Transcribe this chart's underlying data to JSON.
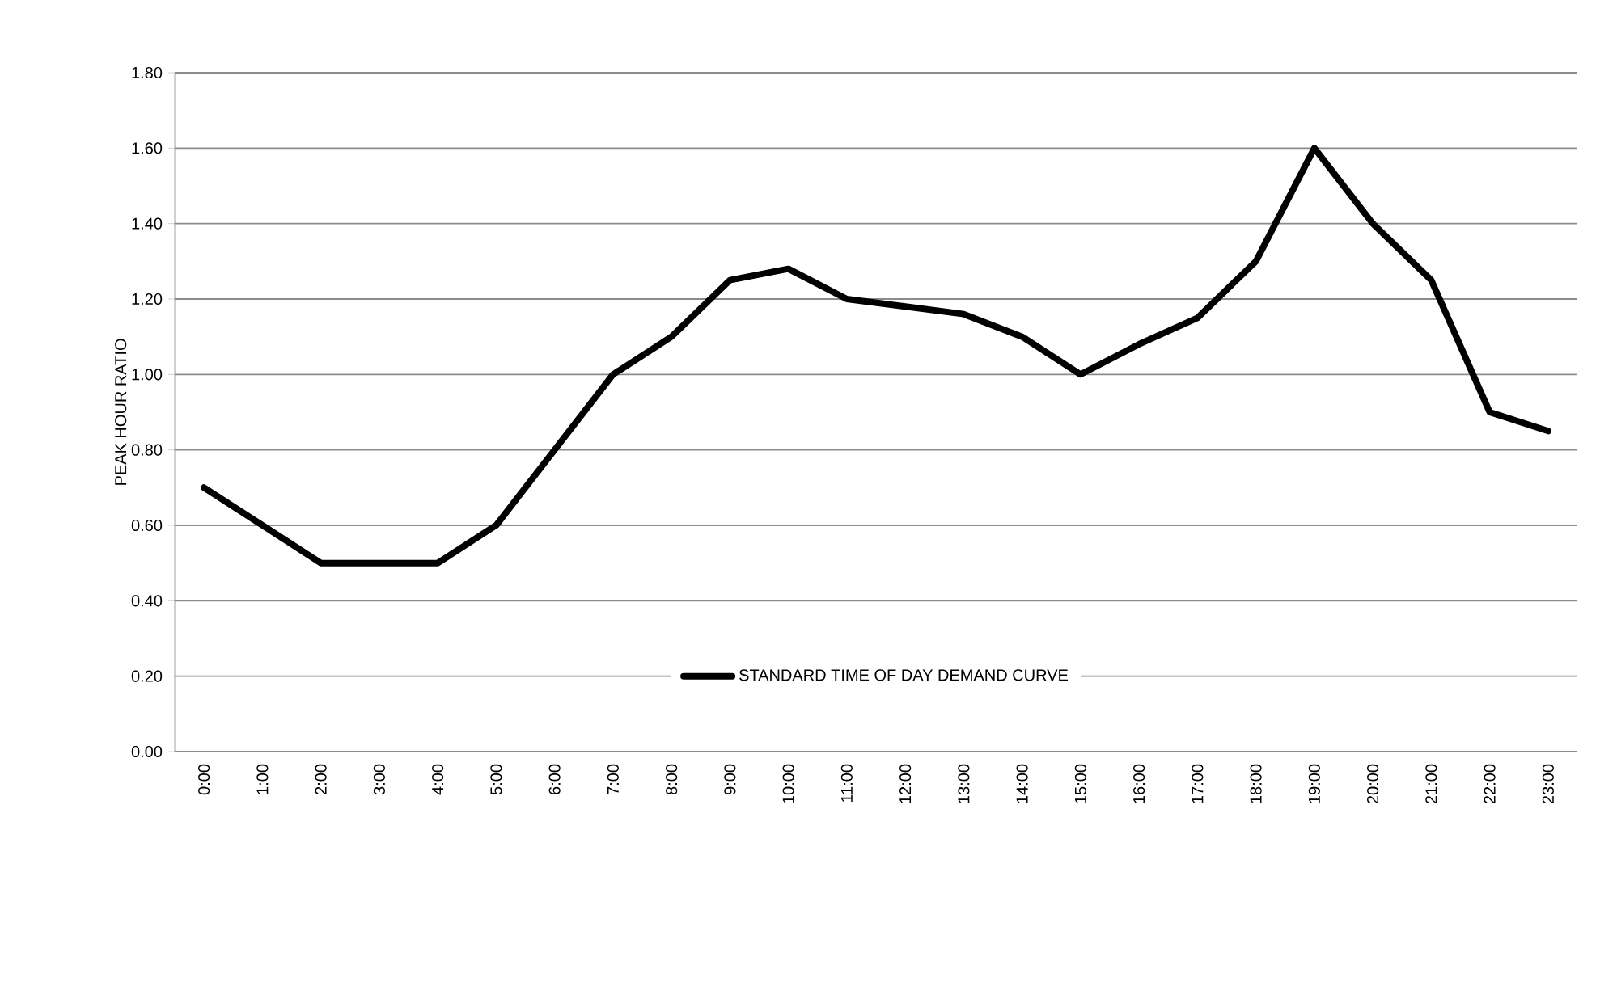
{
  "chart_data": {
    "type": "line",
    "ylabel": "PEAK HOUR RATIO",
    "categories": [
      "0:00",
      "1:00",
      "2:00",
      "3:00",
      "4:00",
      "5:00",
      "6:00",
      "7:00",
      "8:00",
      "9:00",
      "10:00",
      "11:00",
      "12:00",
      "13:00",
      "14:00",
      "15:00",
      "16:00",
      "17:00",
      "18:00",
      "19:00",
      "20:00",
      "21:00",
      "22:00",
      "23:00"
    ],
    "series": [
      {
        "name": "STANDARD TIME OF DAY DEMAND CURVE",
        "color": "#000000",
        "values": [
          0.7,
          0.6,
          0.5,
          0.5,
          0.5,
          0.6,
          0.8,
          1.0,
          1.1,
          1.25,
          1.28,
          1.2,
          1.18,
          1.16,
          1.1,
          1.0,
          1.08,
          1.15,
          1.3,
          1.6,
          1.4,
          1.25,
          0.9,
          0.85
        ]
      }
    ],
    "ylim": [
      0,
      1.8
    ],
    "yticks": [
      {
        "value": 0,
        "label": "0.00"
      },
      {
        "value": 0.2,
        "label": "0.20"
      },
      {
        "value": 0.4,
        "label": "0.40"
      },
      {
        "value": 0.6,
        "label": "0.60"
      },
      {
        "value": 0.8,
        "label": "0.80"
      },
      {
        "value": 1.0,
        "label": "1.00"
      },
      {
        "value": 1.2,
        "label": "1.20"
      },
      {
        "value": 1.4,
        "label": "1.40"
      },
      {
        "value": 1.6,
        "label": "1.60"
      },
      {
        "value": 1.8,
        "label": "1.80"
      }
    ],
    "grid": "y",
    "legend": "bottom",
    "marker": "none",
    "line_style": "solid"
  }
}
